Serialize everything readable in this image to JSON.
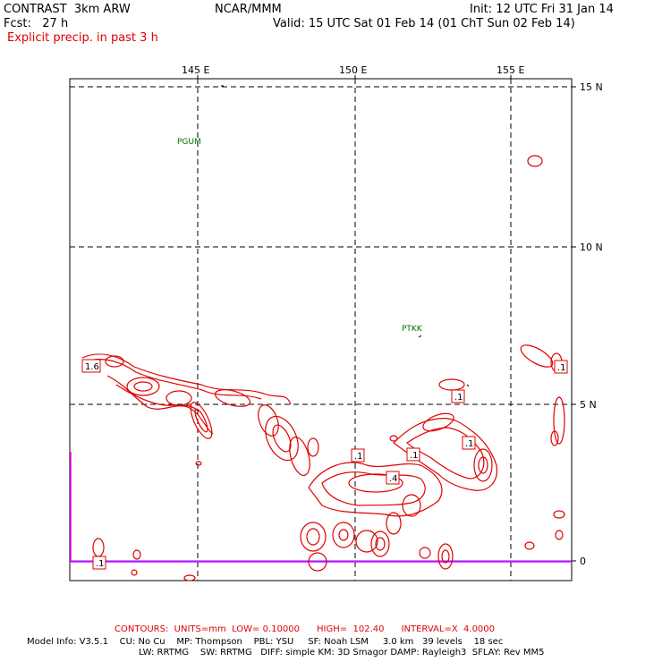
{
  "header": {
    "model": "CONTRAST  3km ARW",
    "org": "NCAR/MMM",
    "init": "Init: 12 UTC Fri 31 Jan 14",
    "fcst": "Fcst:   27 h",
    "valid": "Valid: 15 UTC Sat 01 Feb 14 (01 ChT Sun 02 Feb 14)",
    "field": "Explicit precip. in past 3 h"
  },
  "axes": {
    "lon_ticks": [
      "145 E",
      "150 E",
      "155 E"
    ],
    "lat_ticks": [
      "15 N",
      "10 N",
      "5 N",
      "0"
    ]
  },
  "stations": [
    "PGUM",
    "PTKK"
  ],
  "contour_labels": [
    "1.6",
    ".1",
    ".1",
    ".1",
    ".1",
    ".4",
    ".1",
    ".1",
    ".1"
  ],
  "footer": {
    "contours": "CONTOURS:  UNITS=mm  LOW= 0.10000      HIGH=  102.40      INTERVAL=X  4.0000",
    "model_info_1": "Model Info: V3.5.1    CU: No Cu    MP: Thompson    PBL: YSU     SF: Noah LSM     3.0 km   39 levels    18 sec",
    "model_info_2": "LW: RRTMG    SW: RRTMG   DIFF: simple KM: 3D Smagor DAMP: Rayleigh3  SFLAY: Rev MM5"
  },
  "colors": {
    "precip": "#e00000",
    "grid": "#000000",
    "station": "#007000",
    "boundary": "#ff00ff",
    "equator": "#3030ff"
  }
}
